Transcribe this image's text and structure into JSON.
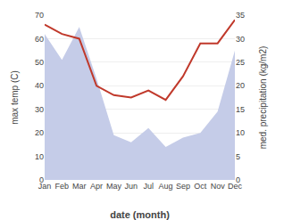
{
  "chart_data": {
    "type": "line",
    "xlabel": "date (month)",
    "ylabel": "max temp (C)",
    "y2label": "med. precipitation (kg/m2)",
    "categories": [
      "Jan",
      "Feb",
      "Mar",
      "Apr",
      "May",
      "Jun",
      "Jul",
      "Aug",
      "Sep",
      "Oct",
      "Nov",
      "Dec"
    ],
    "series": [
      {
        "type": "area",
        "color": "#c5cce8",
        "values": [
          62,
          51,
          65,
          43,
          19,
          16,
          22,
          14,
          18,
          20,
          29,
          55
        ]
      },
      {
        "type": "line",
        "color": "#c0392b",
        "axis": "y2",
        "values": [
          33,
          31,
          30,
          20,
          18,
          17.5,
          19,
          17,
          22,
          29,
          29,
          34
        ]
      }
    ],
    "ylim": [
      0,
      70
    ],
    "yticks": [
      0,
      10,
      20,
      30,
      40,
      50,
      60,
      70
    ],
    "y2lim": [
      0,
      35
    ],
    "y2ticks": [
      0,
      5,
      10,
      15,
      20,
      25,
      30,
      35
    ],
    "grid": true
  }
}
